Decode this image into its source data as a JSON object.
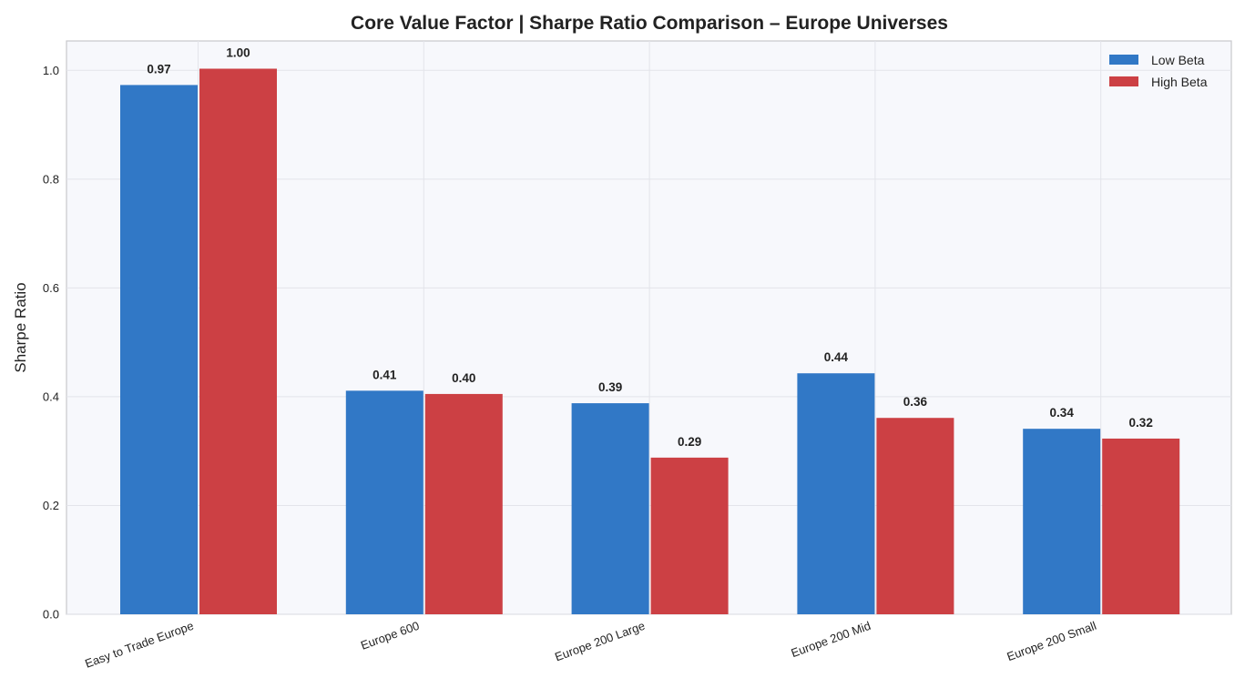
{
  "chart_data": {
    "type": "bar",
    "title": "Core Value Factor  |  Sharpe Ratio Comparison  –  Europe Universes",
    "xlabel": "",
    "ylabel": "Sharpe Ratio",
    "ylim": [
      0,
      1.054
    ],
    "yticks": [
      "0.0",
      "0.2",
      "0.4",
      "0.6",
      "0.8",
      "1.0"
    ],
    "grid": true,
    "legend_position": "top-right",
    "categories": [
      "Easy to Trade Europe",
      "Europe 600",
      "Europe 200 Large",
      "Europe 200 Mid",
      "Europe 200 Small"
    ],
    "series": [
      {
        "name": "Low Beta",
        "color": "#3178c6",
        "values": [
          0.973,
          0.411,
          0.388,
          0.443,
          0.341
        ],
        "labels": [
          "0.97",
          "0.41",
          "0.39",
          "0.44",
          "0.34"
        ]
      },
      {
        "name": "High Beta",
        "color": "#cc4044",
        "values": [
          1.003,
          0.405,
          0.288,
          0.361,
          0.323
        ],
        "labels": [
          "1.00",
          "0.40",
          "0.29",
          "0.36",
          "0.32"
        ]
      }
    ]
  }
}
